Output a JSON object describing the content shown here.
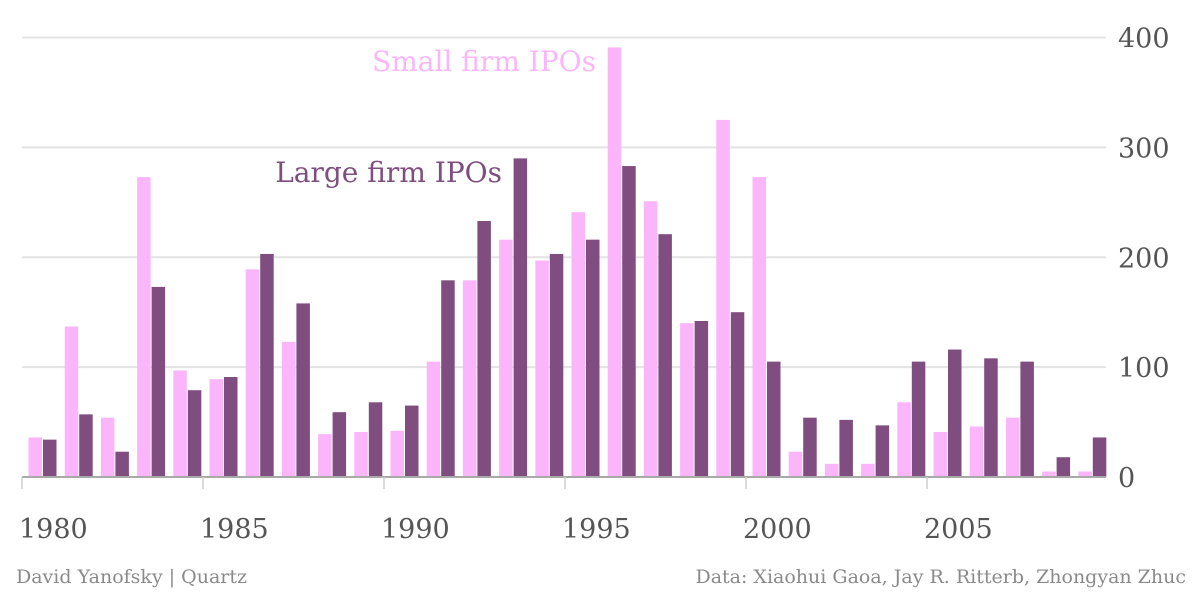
{
  "chart_data": {
    "type": "bar",
    "years": [
      1980,
      1981,
      1982,
      1983,
      1984,
      1985,
      1986,
      1987,
      1988,
      1989,
      1990,
      1991,
      1992,
      1993,
      1994,
      1995,
      1996,
      1997,
      1998,
      1999,
      2000,
      2001,
      2002,
      2003,
      2004,
      2005,
      2006,
      2007,
      2008,
      2009
    ],
    "series": [
      {
        "name": "Small firm IPOs",
        "color": "#fbb6fb",
        "values": [
          36,
          137,
          54,
          273,
          97,
          89,
          189,
          123,
          39,
          41,
          42,
          105,
          179,
          216,
          197,
          241,
          391,
          251,
          140,
          325,
          273,
          23,
          12,
          12,
          68,
          41,
          46,
          54,
          5,
          5
        ]
      },
      {
        "name": "Large firm IPOs",
        "color": "#7f4d7f",
        "values": [
          34,
          57,
          23,
          173,
          79,
          91,
          203,
          158,
          59,
          68,
          65,
          179,
          233,
          290,
          203,
          216,
          283,
          221,
          142,
          150,
          105,
          54,
          52,
          47,
          105,
          116,
          108,
          105,
          18,
          36
        ]
      }
    ],
    "x_ticks": [
      "1980",
      "1985",
      "1990",
      "1995",
      "2000",
      "2005"
    ],
    "y_ticks": [
      "0",
      "100",
      "200",
      "300",
      "400"
    ],
    "ylim": [
      0,
      400
    ],
    "grid": "horizontal",
    "axis_position": "right",
    "series_labels": {
      "small": "Small firm IPOs",
      "large": "Large firm IPOs"
    }
  },
  "footer": {
    "credit": "David Yanofsky | Quartz",
    "source": "Data: Xiaohui Gaoa, Jay R. Ritterb, Zhongyan Zhuc"
  }
}
